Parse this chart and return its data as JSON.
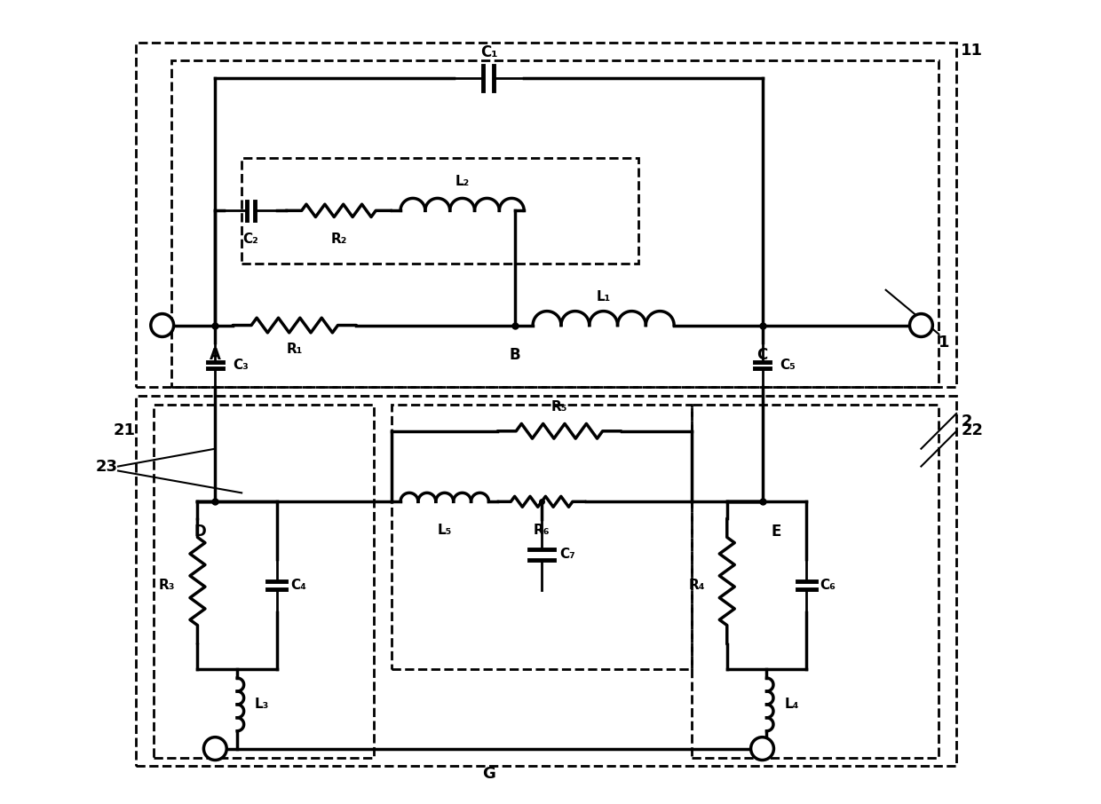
{
  "bg_color": "#ffffff",
  "lc": "#000000",
  "lw": 2.0,
  "lw_thick": 2.5,
  "figsize": [
    12.4,
    9.06
  ],
  "dpi": 100,
  "xlim": [
    0,
    124
  ],
  "ylim": [
    0,
    90.6
  ]
}
